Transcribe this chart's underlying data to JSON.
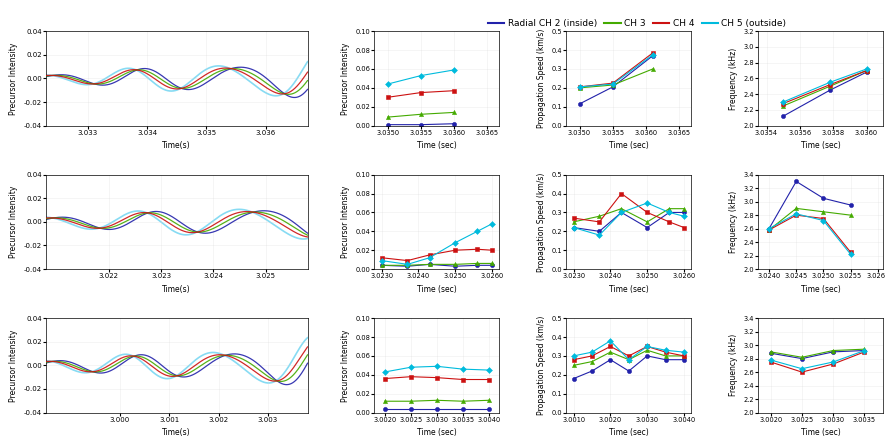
{
  "legend_labels": [
    "Radial CH 2 (inside)",
    "CH 3",
    "CH 4",
    "CH 5 (outside)"
  ],
  "legend_colors": [
    "#2222aa",
    "#44aa00",
    "#cc1111",
    "#00bbdd"
  ],
  "ch5_color": "#55ccee",
  "row0_waveform": {
    "xlabel": "Time(s)",
    "ylabel": "Precursor Intensity",
    "xlim": [
      3.0323,
      3.0367
    ],
    "ylim": [
      -0.04,
      0.04
    ],
    "xticks": [
      3.033,
      3.034,
      3.035,
      3.036
    ],
    "yticks": [
      -0.04,
      -0.02,
      0.0,
      0.02,
      0.04
    ]
  },
  "row1_waveform": {
    "xlabel": "Time(s)",
    "ylabel": "Precursor Intensity",
    "xlim": [
      3.0208,
      3.0258
    ],
    "ylim": [
      -0.04,
      0.04
    ],
    "xticks": [
      3.022,
      3.023,
      3.024,
      3.025
    ],
    "yticks": [
      -0.04,
      -0.02,
      0.0,
      0.02,
      0.04
    ]
  },
  "row2_waveform": {
    "xlabel": "Time(s)",
    "ylabel": "Precursor Intensity",
    "xlim": [
      2.9985,
      3.0038
    ],
    "ylim": [
      -0.04,
      0.04
    ],
    "xticks": [
      3.0,
      3.001,
      3.002,
      3.003
    ],
    "yticks": [
      -0.04,
      -0.02,
      0.0,
      0.02,
      0.04
    ]
  },
  "row0_intensity": {
    "xlabel": "Time (sec)",
    "ylabel": "Precursor Intensity",
    "xlim": [
      3.0348,
      3.03668
    ],
    "ylim": [
      0,
      0.1
    ],
    "xticks": [
      3.035,
      3.0355,
      3.036,
      3.0365
    ],
    "yticks": [
      0,
      0.02,
      0.04,
      0.06,
      0.08,
      0.1
    ],
    "ch2": {
      "x": [
        3.035,
        3.0355,
        3.036
      ],
      "y": [
        0.001,
        0.001,
        0.002
      ]
    },
    "ch3": {
      "x": [
        3.035,
        3.0355,
        3.036
      ],
      "y": [
        0.009,
        0.012,
        0.014
      ]
    },
    "ch4": {
      "x": [
        3.035,
        3.0355,
        3.036
      ],
      "y": [
        0.03,
        0.035,
        0.037
      ]
    },
    "ch5": {
      "x": [
        3.035,
        3.0355,
        3.036
      ],
      "y": [
        0.044,
        0.053,
        0.059
      ]
    }
  },
  "row0_speed": {
    "xlabel": "Time (sec)",
    "ylabel": "Propagation Speed (km/s)",
    "xlim": [
      3.0348,
      3.03668
    ],
    "ylim": [
      0,
      0.5
    ],
    "xticks": [
      3.035,
      3.0355,
      3.036,
      3.0365
    ],
    "yticks": [
      0,
      0.1,
      0.2,
      0.3,
      0.4,
      0.5
    ],
    "ch2": {
      "x": [
        3.035,
        3.0355,
        3.0361
      ],
      "y": [
        0.115,
        0.205,
        0.37
      ]
    },
    "ch3": {
      "x": [
        3.035,
        3.0355,
        3.0361
      ],
      "y": [
        0.2,
        0.215,
        0.3
      ]
    },
    "ch4": {
      "x": [
        3.035,
        3.0355,
        3.0361
      ],
      "y": [
        0.205,
        0.225,
        0.385
      ]
    },
    "ch5": {
      "x": [
        3.035,
        3.0355,
        3.0361
      ],
      "y": [
        0.205,
        0.22,
        0.375
      ]
    }
  },
  "row0_freq": {
    "xlabel": "Time (sec)",
    "ylabel": "Frequency (kHz)",
    "xlim": [
      3.03535,
      3.0361
    ],
    "ylim": [
      2.0,
      3.2
    ],
    "xticks": [
      3.0354,
      3.0356,
      3.0358,
      3.036
    ],
    "yticks": [
      2.0,
      2.2,
      2.4,
      2.6,
      2.8,
      3.0,
      3.2
    ],
    "ch2": {
      "x": [
        3.0355,
        3.03578,
        3.036
      ],
      "y": [
        2.12,
        2.45,
        2.68
      ]
    },
    "ch3": {
      "x": [
        3.0355,
        3.03578,
        3.036
      ],
      "y": [
        2.25,
        2.5,
        2.7
      ]
    },
    "ch4": {
      "x": [
        3.0355,
        3.03578,
        3.036
      ],
      "y": [
        2.28,
        2.52,
        2.7
      ]
    },
    "ch5": {
      "x": [
        3.0355,
        3.03578,
        3.036
      ],
      "y": [
        2.3,
        2.55,
        2.72
      ]
    }
  },
  "row1_intensity": {
    "xlabel": "Time (sec)",
    "ylabel": "Precursor Intensity",
    "xlim": [
      3.0228,
      3.0262
    ],
    "ylim": [
      0,
      0.1
    ],
    "xticks": [
      3.023,
      3.024,
      3.025,
      3.026
    ],
    "yticks": [
      0,
      0.02,
      0.04,
      0.06,
      0.08,
      0.1
    ],
    "ch2": {
      "x": [
        3.023,
        3.0237,
        3.0243,
        3.025,
        3.0256,
        3.026
      ],
      "y": [
        0.004,
        0.003,
        0.005,
        0.003,
        0.004,
        0.004
      ]
    },
    "ch3": {
      "x": [
        3.023,
        3.0237,
        3.0243,
        3.025,
        3.0256,
        3.026
      ],
      "y": [
        0.004,
        0.004,
        0.005,
        0.005,
        0.006,
        0.006
      ]
    },
    "ch4": {
      "x": [
        3.023,
        3.0237,
        3.0243,
        3.025,
        3.0256,
        3.026
      ],
      "y": [
        0.012,
        0.009,
        0.015,
        0.02,
        0.021,
        0.02
      ]
    },
    "ch5": {
      "x": [
        3.023,
        3.0237,
        3.0243,
        3.025,
        3.0256,
        3.026
      ],
      "y": [
        0.009,
        0.005,
        0.012,
        0.028,
        0.04,
        0.048
      ]
    }
  },
  "row1_speed": {
    "xlabel": "Time (sec)",
    "ylabel": "Propagation Speed (km/s)",
    "xlim": [
      3.0228,
      3.0262
    ],
    "ylim": [
      0,
      0.5
    ],
    "xticks": [
      3.023,
      3.024,
      3.025,
      3.026
    ],
    "yticks": [
      0,
      0.1,
      0.2,
      0.3,
      0.4,
      0.5
    ],
    "ch2": {
      "x": [
        3.023,
        3.0237,
        3.0243,
        3.025,
        3.0256,
        3.026
      ],
      "y": [
        0.22,
        0.2,
        0.3,
        0.22,
        0.3,
        0.3
      ]
    },
    "ch3": {
      "x": [
        3.023,
        3.0237,
        3.0243,
        3.025,
        3.0256,
        3.026
      ],
      "y": [
        0.25,
        0.28,
        0.32,
        0.25,
        0.32,
        0.32
      ]
    },
    "ch4": {
      "x": [
        3.023,
        3.0237,
        3.0243,
        3.025,
        3.0256,
        3.026
      ],
      "y": [
        0.27,
        0.25,
        0.4,
        0.3,
        0.25,
        0.22
      ]
    },
    "ch5": {
      "x": [
        3.023,
        3.0237,
        3.0243,
        3.025,
        3.0256,
        3.026
      ],
      "y": [
        0.22,
        0.18,
        0.3,
        0.35,
        0.3,
        0.28
      ]
    }
  },
  "row1_freq": {
    "xlabel": "Time (sec)",
    "ylabel": "Frequency (kHz)",
    "xlim": [
      3.0238,
      3.0261
    ],
    "ylim": [
      2.0,
      3.4
    ],
    "xticks": [
      3.024,
      3.0245,
      3.025,
      3.0255,
      3.026
    ],
    "yticks": [
      2.0,
      2.2,
      2.4,
      2.6,
      2.8,
      3.0,
      3.2,
      3.4
    ],
    "ch2": {
      "x": [
        3.024,
        3.0245,
        3.025,
        3.0255
      ],
      "y": [
        2.6,
        3.3,
        3.05,
        2.95
      ]
    },
    "ch3": {
      "x": [
        3.024,
        3.0245,
        3.025,
        3.0255
      ],
      "y": [
        2.58,
        2.9,
        2.85,
        2.8
      ]
    },
    "ch4": {
      "x": [
        3.024,
        3.0245,
        3.025,
        3.0255
      ],
      "y": [
        2.58,
        2.8,
        2.75,
        2.25
      ]
    },
    "ch5": {
      "x": [
        3.024,
        3.0245,
        3.025,
        3.0255
      ],
      "y": [
        2.6,
        2.82,
        2.72,
        2.22
      ]
    }
  },
  "row2_intensity": {
    "xlabel": "Time (sec)",
    "ylabel": "Precursor Intensity",
    "xlim": [
      3.0018,
      3.0042
    ],
    "ylim": [
      0,
      0.1
    ],
    "xticks": [
      3.002,
      3.0025,
      3.003,
      3.0035,
      3.004
    ],
    "yticks": [
      0,
      0.02,
      0.04,
      0.06,
      0.08,
      0.1
    ],
    "ch2": {
      "x": [
        3.002,
        3.0025,
        3.003,
        3.0035,
        3.004
      ],
      "y": [
        0.004,
        0.004,
        0.004,
        0.004,
        0.004
      ]
    },
    "ch3": {
      "x": [
        3.002,
        3.0025,
        3.003,
        3.0035,
        3.004
      ],
      "y": [
        0.012,
        0.012,
        0.013,
        0.012,
        0.013
      ]
    },
    "ch4": {
      "x": [
        3.002,
        3.0025,
        3.003,
        3.0035,
        3.004
      ],
      "y": [
        0.036,
        0.038,
        0.037,
        0.035,
        0.035
      ]
    },
    "ch5": {
      "x": [
        3.002,
        3.0025,
        3.003,
        3.0035,
        3.004
      ],
      "y": [
        0.043,
        0.048,
        0.049,
        0.046,
        0.045
      ]
    }
  },
  "row2_speed": {
    "xlabel": "Time (sec)",
    "ylabel": "Propagation Speed (km/s)",
    "xlim": [
      3.0008,
      3.0042
    ],
    "ylim": [
      0,
      0.5
    ],
    "xticks": [
      3.001,
      3.002,
      3.003,
      3.004
    ],
    "yticks": [
      0,
      0.1,
      0.2,
      0.3,
      0.4,
      0.5
    ],
    "ch2": {
      "x": [
        3.001,
        3.0015,
        3.002,
        3.0025,
        3.003,
        3.0035,
        3.004
      ],
      "y": [
        0.18,
        0.22,
        0.28,
        0.22,
        0.3,
        0.28,
        0.28
      ]
    },
    "ch3": {
      "x": [
        3.001,
        3.0015,
        3.002,
        3.0025,
        3.003,
        3.0035,
        3.004
      ],
      "y": [
        0.25,
        0.27,
        0.32,
        0.28,
        0.33,
        0.3,
        0.3
      ]
    },
    "ch4": {
      "x": [
        3.001,
        3.0015,
        3.002,
        3.0025,
        3.003,
        3.0035,
        3.004
      ],
      "y": [
        0.28,
        0.3,
        0.35,
        0.3,
        0.35,
        0.32,
        0.3
      ]
    },
    "ch5": {
      "x": [
        3.001,
        3.0015,
        3.002,
        3.0025,
        3.003,
        3.0035,
        3.004
      ],
      "y": [
        0.3,
        0.32,
        0.38,
        0.28,
        0.35,
        0.33,
        0.32
      ]
    }
  },
  "row2_freq": {
    "xlabel": "Time (sec)",
    "ylabel": "Frequency (kHz)",
    "xlim": [
      3.0018,
      3.0038
    ],
    "ylim": [
      2.0,
      3.4
    ],
    "xticks": [
      3.002,
      3.0025,
      3.003,
      3.0035
    ],
    "yticks": [
      2.0,
      2.2,
      2.4,
      2.6,
      2.8,
      3.0,
      3.2,
      3.4
    ],
    "ch2": {
      "x": [
        3.002,
        3.0025,
        3.003,
        3.0035
      ],
      "y": [
        2.88,
        2.8,
        2.9,
        2.92
      ]
    },
    "ch3": {
      "x": [
        3.002,
        3.0025,
        3.003,
        3.0035
      ],
      "y": [
        2.9,
        2.82,
        2.92,
        2.94
      ]
    },
    "ch4": {
      "x": [
        3.002,
        3.0025,
        3.003,
        3.0035
      ],
      "y": [
        2.75,
        2.6,
        2.72,
        2.9
      ]
    },
    "ch5": {
      "x": [
        3.002,
        3.0025,
        3.003,
        3.0035
      ],
      "y": [
        2.78,
        2.65,
        2.75,
        2.92
      ]
    }
  }
}
